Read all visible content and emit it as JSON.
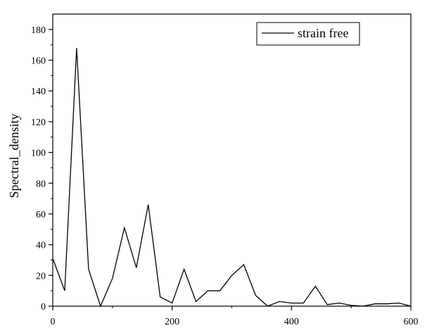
{
  "chart_data": {
    "type": "line",
    "title": "",
    "xlabel": "",
    "ylabel": "Spectral_density",
    "xlim": [
      0,
      600
    ],
    "ylim": [
      0,
      190
    ],
    "x_ticks": [
      0,
      200,
      400,
      600
    ],
    "y_ticks": [
      0,
      20,
      40,
      60,
      80,
      100,
      120,
      140,
      160,
      180
    ],
    "grid": false,
    "legend_position": "top-right",
    "series": [
      {
        "name": "strain free",
        "color": "#000000",
        "x": [
          0,
          20,
          40,
          60,
          80,
          100,
          120,
          140,
          160,
          180,
          200,
          220,
          240,
          260,
          280,
          300,
          320,
          340,
          360,
          380,
          400,
          420,
          440,
          460,
          480,
          500,
          520,
          540,
          560,
          580,
          600
        ],
        "y": [
          31,
          10,
          168,
          24,
          0,
          18,
          51,
          25,
          66,
          6,
          2,
          24,
          3,
          10,
          10,
          20,
          27,
          7,
          0,
          3,
          2,
          2,
          13,
          1,
          2,
          0.5,
          0,
          1.5,
          1.5,
          2,
          0
        ]
      }
    ]
  }
}
